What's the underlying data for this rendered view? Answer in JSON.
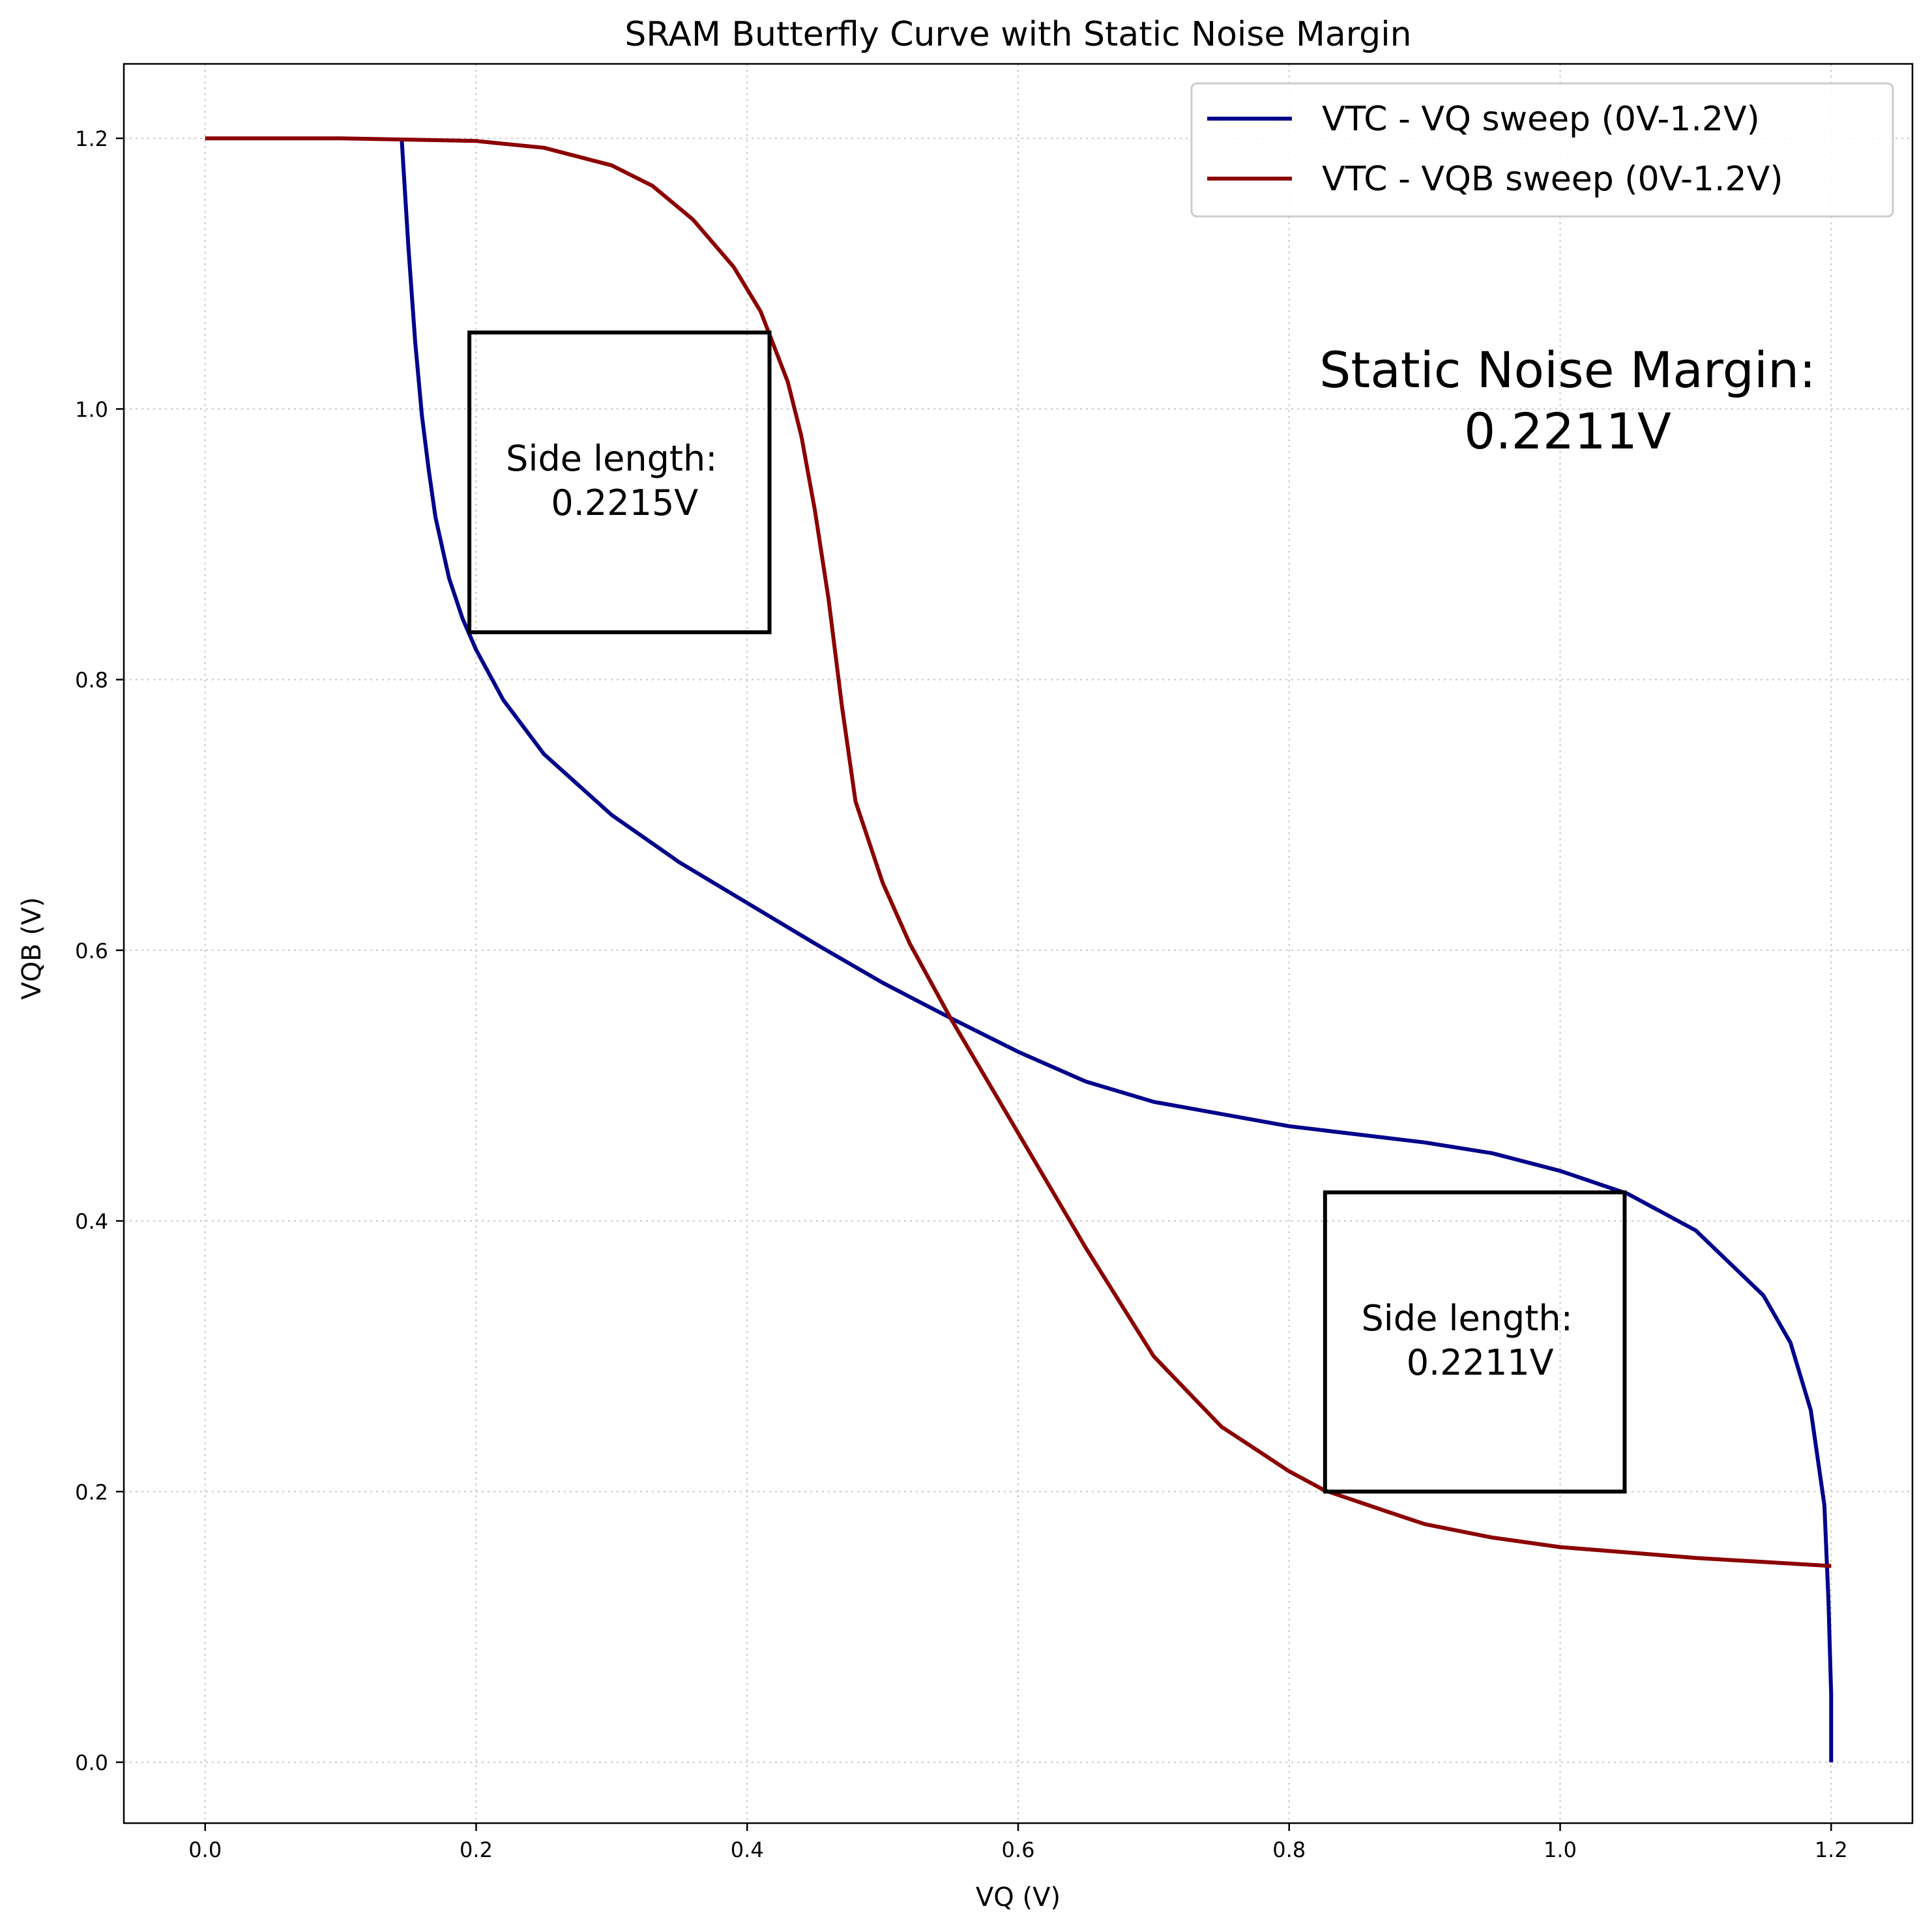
{
  "chart_data": {
    "type": "line",
    "title": "SRAM Butterfly Curve with Static Noise Margin",
    "xlabel": "VQ (V)",
    "ylabel": "VQB (V)",
    "xlim": [
      -0.06,
      1.26
    ],
    "ylim": [
      -0.045,
      1.255
    ],
    "xticks": [
      0.0,
      0.2,
      0.4,
      0.6,
      0.8,
      1.0,
      1.2
    ],
    "xtick_labels": [
      "0.0",
      "0.2",
      "0.4",
      "0.6",
      "0.8",
      "1.0",
      "1.2"
    ],
    "yticks": [
      0.0,
      0.2,
      0.4,
      0.6,
      0.8,
      1.0,
      1.2
    ],
    "ytick_labels": [
      "0.0",
      "0.2",
      "0.4",
      "0.6",
      "0.8",
      "1.0",
      "1.2"
    ],
    "grid": true,
    "legend_position": "top-right",
    "series": [
      {
        "name": "VTC - VQ sweep (0V-1.2V)",
        "color": "#00008b",
        "points": [
          [
            0.145,
            1.2
          ],
          [
            0.15,
            1.12
          ],
          [
            0.155,
            1.05
          ],
          [
            0.16,
            0.995
          ],
          [
            0.165,
            0.955
          ],
          [
            0.17,
            0.92
          ],
          [
            0.18,
            0.875
          ],
          [
            0.19,
            0.845
          ],
          [
            0.2,
            0.822
          ],
          [
            0.22,
            0.785
          ],
          [
            0.25,
            0.745
          ],
          [
            0.3,
            0.7
          ],
          [
            0.35,
            0.665
          ],
          [
            0.4,
            0.635
          ],
          [
            0.45,
            0.605
          ],
          [
            0.5,
            0.576
          ],
          [
            0.55,
            0.55
          ],
          [
            0.6,
            0.525
          ],
          [
            0.65,
            0.503
          ],
          [
            0.7,
            0.488
          ],
          [
            0.8,
            0.47
          ],
          [
            0.9,
            0.458
          ],
          [
            0.95,
            0.45
          ],
          [
            1.0,
            0.437
          ],
          [
            1.05,
            0.42
          ],
          [
            1.1,
            0.393
          ],
          [
            1.15,
            0.345
          ],
          [
            1.17,
            0.31
          ],
          [
            1.185,
            0.26
          ],
          [
            1.195,
            0.19
          ],
          [
            1.198,
            0.12
          ],
          [
            1.2,
            0.05
          ],
          [
            1.2,
            0.0
          ]
        ]
      },
      {
        "name": "VTC - VQB sweep (0V-1.2V)",
        "color": "#8b0000",
        "points": [
          [
            0.0,
            1.2
          ],
          [
            0.1,
            1.2
          ],
          [
            0.2,
            1.198
          ],
          [
            0.25,
            1.193
          ],
          [
            0.3,
            1.18
          ],
          [
            0.33,
            1.165
          ],
          [
            0.36,
            1.14
          ],
          [
            0.39,
            1.105
          ],
          [
            0.41,
            1.072
          ],
          [
            0.43,
            1.02
          ],
          [
            0.44,
            0.98
          ],
          [
            0.45,
            0.925
          ],
          [
            0.46,
            0.86
          ],
          [
            0.47,
            0.78
          ],
          [
            0.48,
            0.71
          ],
          [
            0.5,
            0.65
          ],
          [
            0.52,
            0.605
          ],
          [
            0.55,
            0.55
          ],
          [
            0.6,
            0.465
          ],
          [
            0.65,
            0.38
          ],
          [
            0.7,
            0.3
          ],
          [
            0.75,
            0.248
          ],
          [
            0.8,
            0.215
          ],
          [
            0.826,
            0.201
          ],
          [
            0.87,
            0.186
          ],
          [
            0.9,
            0.176
          ],
          [
            0.95,
            0.166
          ],
          [
            1.0,
            0.159
          ],
          [
            1.05,
            0.155
          ],
          [
            1.1,
            0.151
          ],
          [
            1.15,
            0.148
          ],
          [
            1.2,
            0.145
          ]
        ]
      }
    ],
    "squares": [
      {
        "x0": 0.195,
        "y0": 0.835,
        "x1": 0.4165,
        "y1": 1.0565,
        "label_line1": "Side length:",
        "label_line2": "0.2215V"
      },
      {
        "x0": 0.8265,
        "y0": 0.2,
        "x1": 1.0476,
        "y1": 0.4211,
        "label_line1": "Side length:",
        "label_line2": "0.2211V"
      }
    ],
    "annotation": {
      "line1": "Static Noise Margin:",
      "line2": "0.2211V"
    }
  }
}
